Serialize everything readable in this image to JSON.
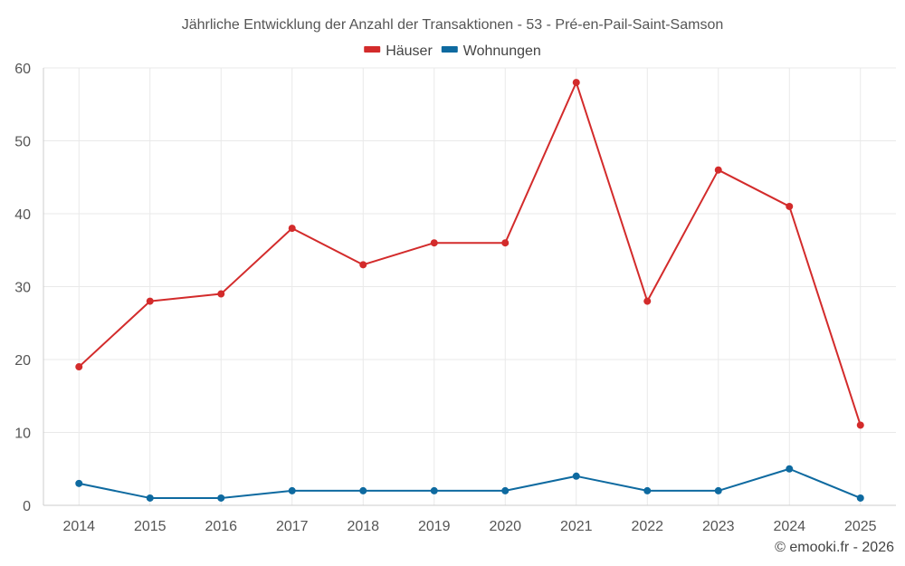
{
  "chart_data": {
    "type": "line",
    "title": "Jährliche Entwicklung der Anzahl der Transaktionen - 53 - Pré-en-Pail-Saint-Samson",
    "categories": [
      "2014",
      "2015",
      "2016",
      "2017",
      "2018",
      "2019",
      "2020",
      "2021",
      "2022",
      "2023",
      "2024",
      "2025"
    ],
    "ylim": [
      0,
      60
    ],
    "yticks": [
      0,
      10,
      20,
      30,
      40,
      50,
      60
    ],
    "grid": true,
    "legend_position": "top-center",
    "series": [
      {
        "name": "Häuser",
        "color": "#d32b2b",
        "values": [
          19,
          28,
          29,
          38,
          33,
          36,
          36,
          58,
          28,
          46,
          41,
          11
        ]
      },
      {
        "name": "Wohnungen",
        "color": "#0e6aa0",
        "values": [
          3,
          1,
          1,
          2,
          2,
          2,
          2,
          4,
          2,
          2,
          5,
          1
        ]
      }
    ],
    "credit": "© emooki.fr - 2026"
  }
}
